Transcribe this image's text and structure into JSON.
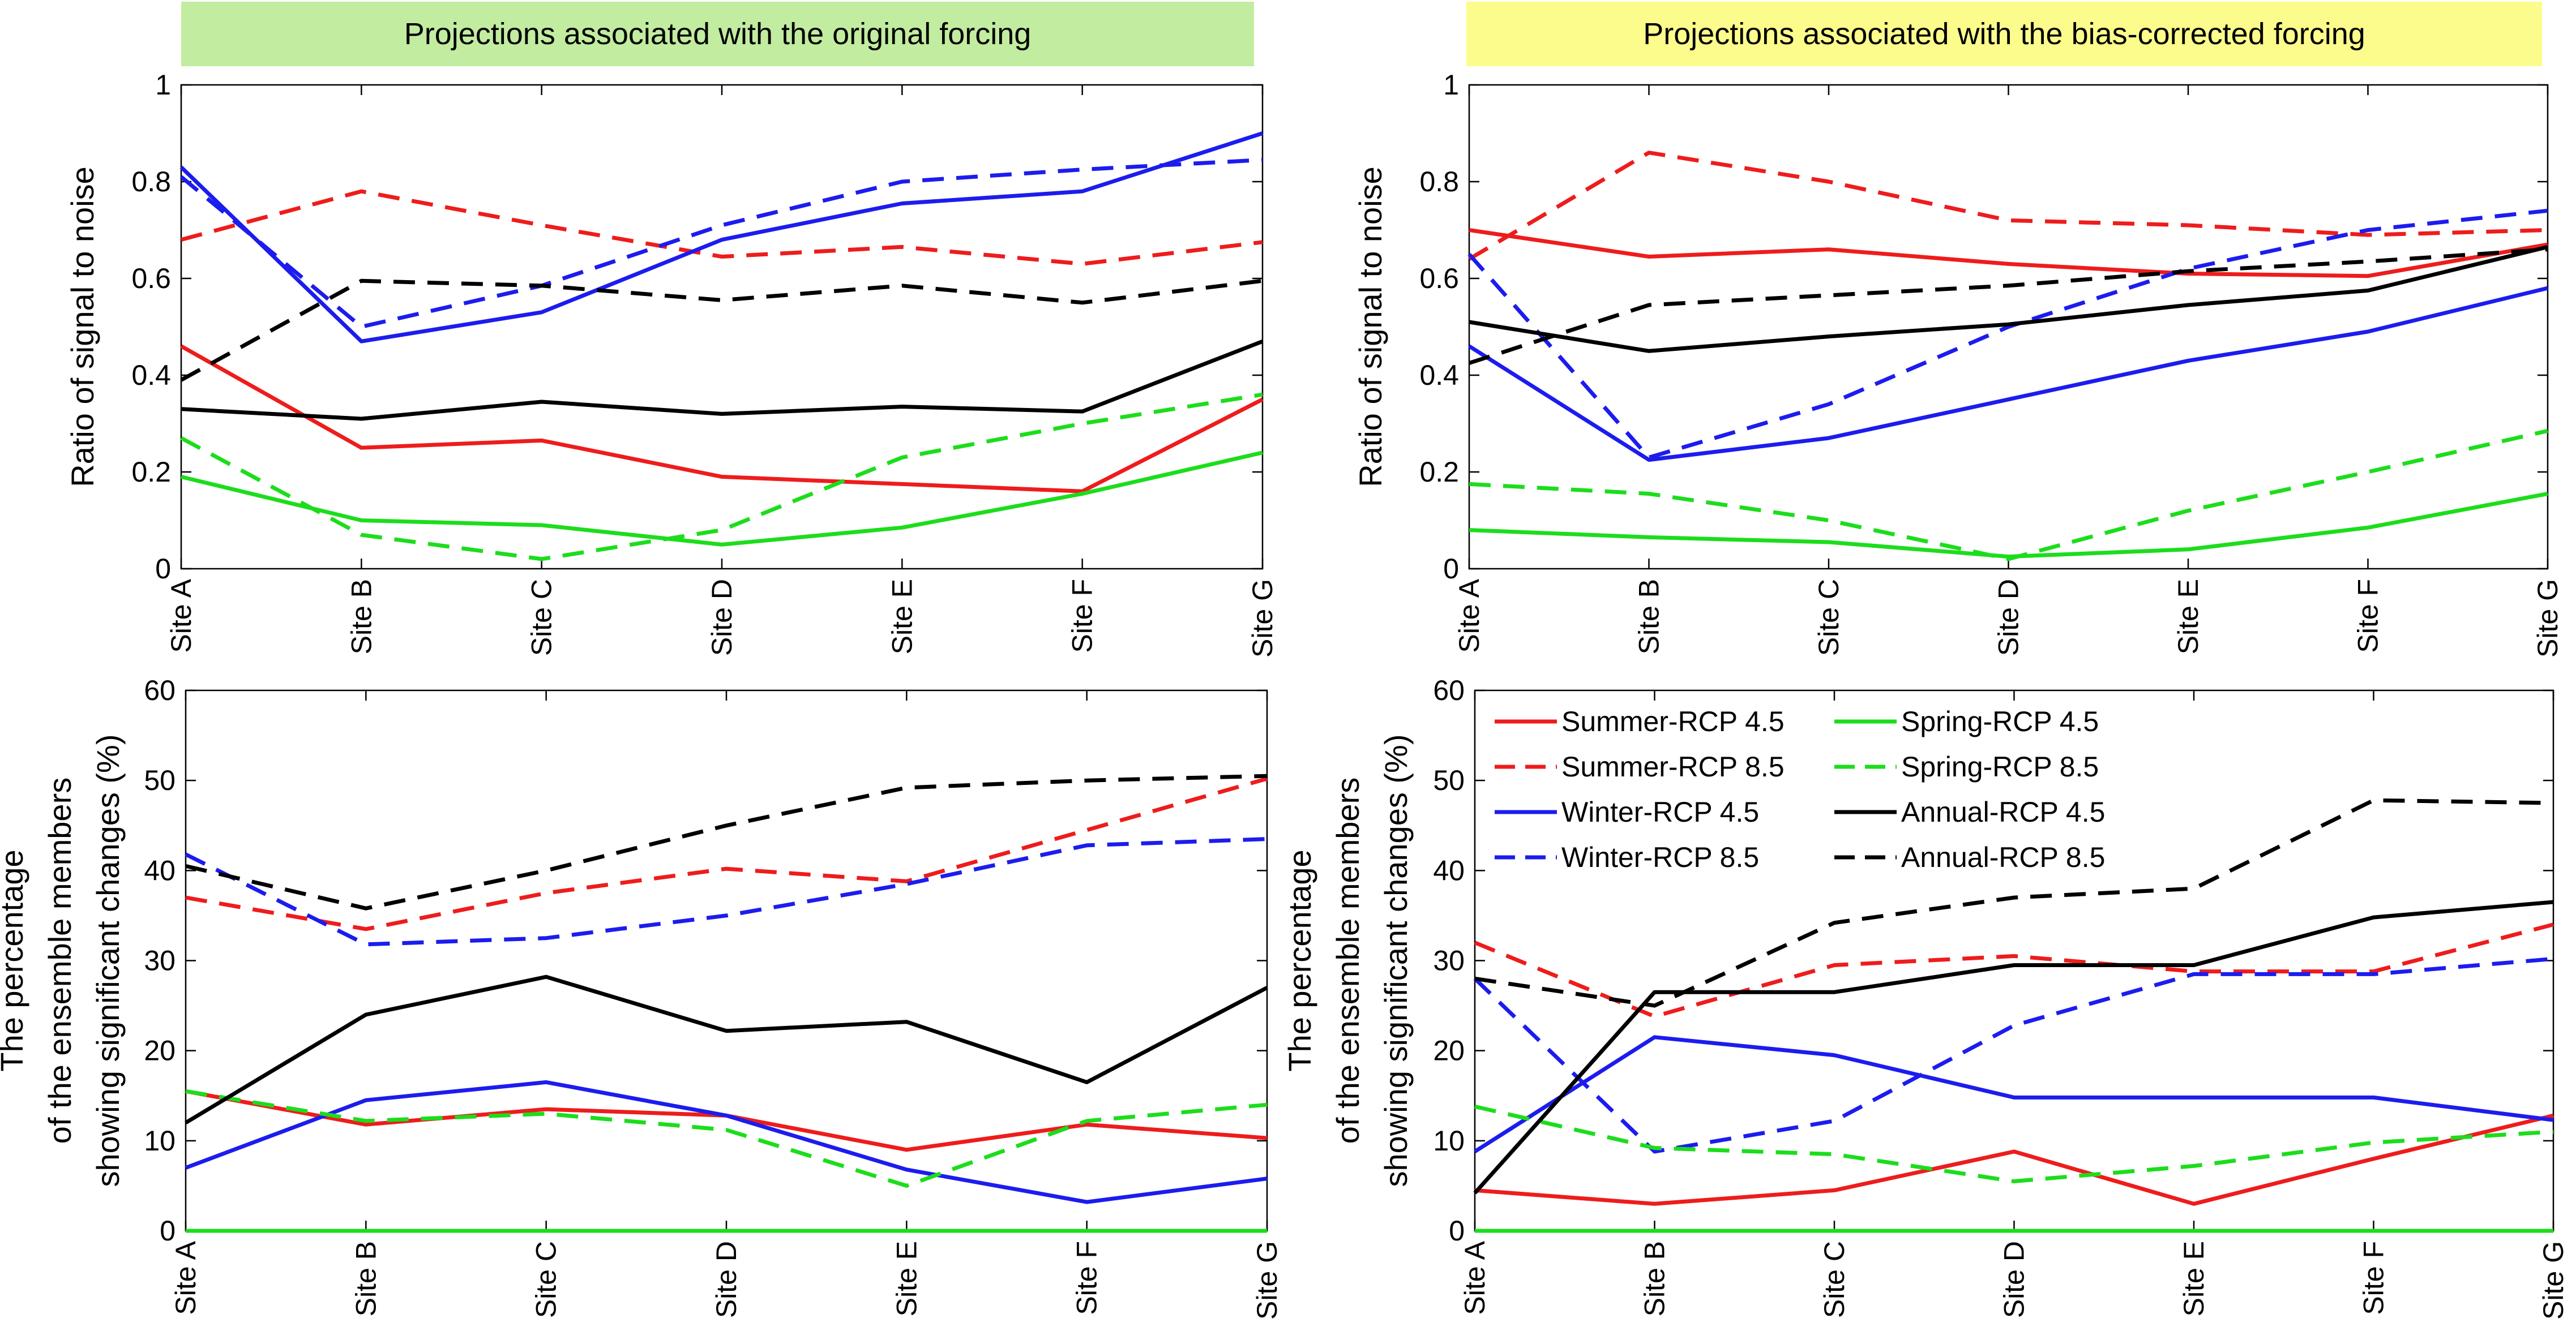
{
  "banners": {
    "left": "Projections associated with the original forcing",
    "right": "Projections associated with the bias-corrected forcing",
    "left_color": "#c2eca0",
    "right_color": "#fcfc8c"
  },
  "series_styles": [
    {
      "key": "summer45",
      "color": "#ee1c1c",
      "dashed": false
    },
    {
      "key": "summer85",
      "color": "#ee1c1c",
      "dashed": true
    },
    {
      "key": "winter45",
      "color": "#1c1cee",
      "dashed": false
    },
    {
      "key": "winter85",
      "color": "#1c1cee",
      "dashed": true
    },
    {
      "key": "spring45",
      "color": "#1cdd1c",
      "dashed": false
    },
    {
      "key": "spring85",
      "color": "#1cdd1c",
      "dashed": true
    },
    {
      "key": "annual45",
      "color": "#000000",
      "dashed": false
    },
    {
      "key": "annual85",
      "color": "#000000",
      "dashed": true
    }
  ],
  "legend": {
    "entries": [
      {
        "key": "summer45",
        "label": "Summer-RCP 4.5"
      },
      {
        "key": "spring45",
        "label": "Spring-RCP 4.5"
      },
      {
        "key": "summer85",
        "label": "Summer-RCP 8.5"
      },
      {
        "key": "spring85",
        "label": "Spring-RCP 8.5"
      },
      {
        "key": "winter45",
        "label": "Winter-RCP 4.5"
      },
      {
        "key": "annual45",
        "label": "Annual-RCP 4.5"
      },
      {
        "key": "winter85",
        "label": "Winter-RCP 8.5"
      },
      {
        "key": "annual85",
        "label": "Annual-RCP 8.5"
      }
    ]
  },
  "chart_data": [
    {
      "id": "top-left",
      "type": "line",
      "title": "Projections associated with the original forcing",
      "ylabel": [
        "Ratio of signal to noise"
      ],
      "categories": [
        "Site A",
        "Site B",
        "Site C",
        "Site D",
        "Site E",
        "Site F",
        "Site G"
      ],
      "ylim": [
        0,
        1
      ],
      "yticks": [
        0,
        0.2,
        0.4,
        0.6,
        0.8,
        1
      ],
      "ytick_labels": [
        "0",
        "0.2",
        "0.4",
        "0.6",
        "0.8",
        "1"
      ],
      "series": [
        {
          "key": "summer45",
          "name": "Summer-RCP 4.5",
          "values": [
            0.46,
            0.25,
            0.265,
            0.19,
            0.175,
            0.16,
            0.35
          ]
        },
        {
          "key": "summer85",
          "name": "Summer-RCP 8.5",
          "values": [
            0.68,
            0.78,
            0.71,
            0.645,
            0.665,
            0.63,
            0.675
          ]
        },
        {
          "key": "winter45",
          "name": "Winter-RCP 4.5",
          "values": [
            0.83,
            0.47,
            0.53,
            0.68,
            0.755,
            0.78,
            0.9
          ]
        },
        {
          "key": "winter85",
          "name": "Winter-RCP 8.5",
          "values": [
            0.81,
            0.5,
            0.585,
            0.71,
            0.8,
            0.825,
            0.845
          ]
        },
        {
          "key": "spring45",
          "name": "Spring-RCP 4.5",
          "values": [
            0.19,
            0.1,
            0.09,
            0.05,
            0.085,
            0.155,
            0.24
          ]
        },
        {
          "key": "spring85",
          "name": "Spring-RCP 8.5",
          "values": [
            0.27,
            0.07,
            0.02,
            0.08,
            0.23,
            0.3,
            0.36
          ]
        },
        {
          "key": "annual45",
          "name": "Annual-RCP 4.5",
          "values": [
            0.33,
            0.31,
            0.345,
            0.32,
            0.335,
            0.325,
            0.47
          ]
        },
        {
          "key": "annual85",
          "name": "Annual-RCP 8.5",
          "values": [
            0.39,
            0.595,
            0.585,
            0.555,
            0.585,
            0.55,
            0.595
          ]
        }
      ]
    },
    {
      "id": "top-right",
      "type": "line",
      "title": "Projections associated with the bias-corrected forcing",
      "ylabel": [
        "Ratio of signal to noise"
      ],
      "categories": [
        "Site A",
        "Site B",
        "Site C",
        "Site D",
        "Site E",
        "Site F",
        "Site G"
      ],
      "ylim": [
        0,
        1
      ],
      "yticks": [
        0,
        0.2,
        0.4,
        0.6,
        0.8,
        1
      ],
      "ytick_labels": [
        "0",
        "0.2",
        "0.4",
        "0.6",
        "0.8",
        "1"
      ],
      "series": [
        {
          "key": "summer45",
          "name": "Summer-RCP 4.5",
          "values": [
            0.7,
            0.645,
            0.66,
            0.63,
            0.61,
            0.605,
            0.67
          ]
        },
        {
          "key": "summer85",
          "name": "Summer-RCP 8.5",
          "values": [
            0.64,
            0.86,
            0.8,
            0.72,
            0.71,
            0.69,
            0.7
          ]
        },
        {
          "key": "winter45",
          "name": "Winter-RCP 4.5",
          "values": [
            0.46,
            0.225,
            0.27,
            0.35,
            0.43,
            0.49,
            0.58
          ]
        },
        {
          "key": "winter85",
          "name": "Winter-RCP 8.5",
          "values": [
            0.65,
            0.23,
            0.34,
            0.5,
            0.62,
            0.7,
            0.74
          ]
        },
        {
          "key": "spring45",
          "name": "Spring-RCP 4.5",
          "values": [
            0.08,
            0.065,
            0.055,
            0.025,
            0.04,
            0.085,
            0.155
          ]
        },
        {
          "key": "spring85",
          "name": "Spring-RCP 8.5",
          "values": [
            0.175,
            0.155,
            0.1,
            0.02,
            0.12,
            0.2,
            0.285
          ]
        },
        {
          "key": "annual45",
          "name": "Annual-RCP 4.5",
          "values": [
            0.51,
            0.45,
            0.48,
            0.505,
            0.545,
            0.575,
            0.665
          ]
        },
        {
          "key": "annual85",
          "name": "Annual-RCP 8.5",
          "values": [
            0.425,
            0.545,
            0.565,
            0.585,
            0.615,
            0.635,
            0.66
          ]
        }
      ]
    },
    {
      "id": "bottom-left",
      "type": "line",
      "ylabel": [
        "The percentage",
        "of the ensemble members",
        "showing significant changes (%)"
      ],
      "categories": [
        "Site A",
        "Site B",
        "Site C",
        "Site D",
        "Site E",
        "Site F",
        "Site G"
      ],
      "ylim": [
        0,
        60
      ],
      "yticks": [
        0,
        10,
        20,
        30,
        40,
        50,
        60
      ],
      "ytick_labels": [
        "0",
        "10",
        "20",
        "30",
        "40",
        "50",
        "60"
      ],
      "series": [
        {
          "key": "summer45",
          "name": "Summer-RCP 4.5",
          "values": [
            15.5,
            11.8,
            13.5,
            12.8,
            9.0,
            11.8,
            10.3
          ]
        },
        {
          "key": "summer85",
          "name": "Summer-RCP 8.5",
          "values": [
            37.0,
            33.5,
            37.5,
            40.2,
            38.8,
            44.5,
            50.2
          ]
        },
        {
          "key": "winter45",
          "name": "Winter-RCP 4.5",
          "values": [
            7.0,
            14.5,
            16.5,
            12.8,
            6.8,
            3.2,
            5.8
          ]
        },
        {
          "key": "winter85",
          "name": "Winter-RCP 8.5",
          "values": [
            41.8,
            31.8,
            32.5,
            35.0,
            38.5,
            42.8,
            43.5
          ]
        },
        {
          "key": "spring45",
          "name": "Spring-RCP 4.5",
          "values": [
            0,
            0,
            0,
            0,
            0,
            0,
            0
          ]
        },
        {
          "key": "spring85",
          "name": "Spring-RCP 8.5",
          "values": [
            15.5,
            12.2,
            13.0,
            11.2,
            5.0,
            12.2,
            14.0
          ]
        },
        {
          "key": "annual45",
          "name": "Annual-RCP 4.5",
          "values": [
            12.0,
            24.0,
            28.2,
            22.2,
            23.2,
            16.5,
            27.0
          ]
        },
        {
          "key": "annual85",
          "name": "Annual-RCP 8.5",
          "values": [
            40.5,
            35.8,
            40.0,
            45.0,
            49.2,
            50.0,
            50.5
          ]
        }
      ]
    },
    {
      "id": "bottom-right",
      "type": "line",
      "ylabel": [
        "The percentage",
        "of the ensemble members",
        "showing significant changes (%)"
      ],
      "categories": [
        "Site A",
        "Site B",
        "Site C",
        "Site D",
        "Site E",
        "Site F",
        "Site G"
      ],
      "ylim": [
        0,
        60
      ],
      "yticks": [
        0,
        10,
        20,
        30,
        40,
        50,
        60
      ],
      "ytick_labels": [
        "0",
        "10",
        "20",
        "30",
        "40",
        "50",
        "60"
      ],
      "legend_position": "top-left",
      "series": [
        {
          "key": "summer45",
          "name": "Summer-RCP 4.5",
          "values": [
            4.5,
            3.0,
            4.5,
            8.8,
            3.0,
            8.0,
            12.8
          ]
        },
        {
          "key": "summer85",
          "name": "Summer-RCP 8.5",
          "values": [
            32.0,
            23.8,
            29.5,
            30.5,
            28.8,
            28.8,
            34.0
          ]
        },
        {
          "key": "winter45",
          "name": "Winter-RCP 4.5",
          "values": [
            8.8,
            21.5,
            19.5,
            14.8,
            14.8,
            14.8,
            12.3
          ]
        },
        {
          "key": "winter85",
          "name": "Winter-RCP 8.5",
          "values": [
            28.0,
            8.8,
            12.2,
            22.8,
            28.5,
            28.5,
            30.2
          ]
        },
        {
          "key": "spring45",
          "name": "Spring-RCP 4.5",
          "values": [
            0,
            0,
            0,
            0,
            0,
            0,
            0
          ]
        },
        {
          "key": "spring85",
          "name": "Spring-RCP 8.5",
          "values": [
            13.8,
            9.2,
            8.5,
            5.5,
            7.2,
            9.8,
            11.0
          ]
        },
        {
          "key": "annual45",
          "name": "Annual-RCP 4.5",
          "values": [
            4.2,
            26.5,
            26.5,
            29.5,
            29.5,
            34.8,
            36.5
          ]
        },
        {
          "key": "annual85",
          "name": "Annual-RCP 8.5",
          "values": [
            28.0,
            25.0,
            34.2,
            37.0,
            38.0,
            47.8,
            47.5
          ]
        }
      ]
    }
  ]
}
